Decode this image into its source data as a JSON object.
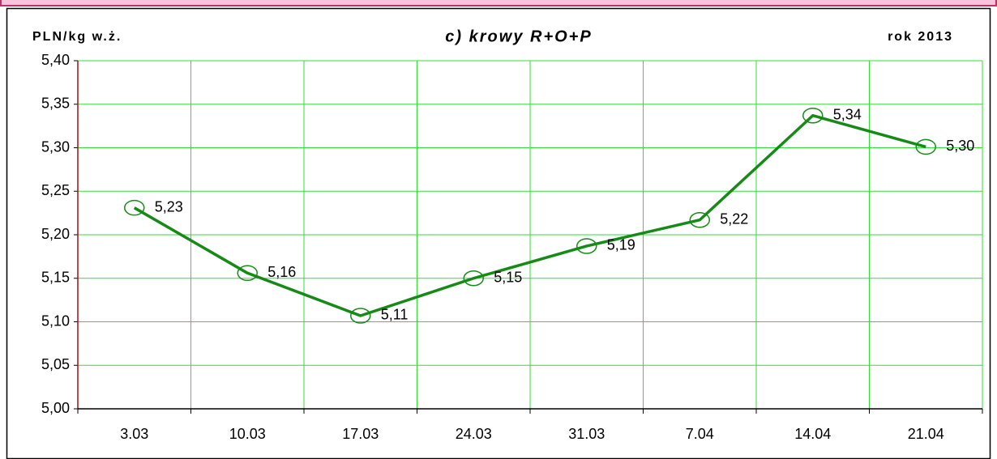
{
  "chart_data": {
    "type": "line",
    "title": "c) krowy R+O+P",
    "y_label": "PLN/kg w.ż.",
    "annotation": "rok 2013",
    "categories": [
      "3.03",
      "10.03",
      "17.03",
      "24.03",
      "31.03",
      "7.04",
      "14.04",
      "21.04"
    ],
    "series": [
      {
        "name": "krowy R+O+P",
        "color": "#168a16",
        "values": [
          5.231,
          5.156,
          5.107,
          5.15,
          5.187,
          5.217,
          5.337,
          5.301
        ],
        "value_labels": [
          "5,23",
          "5,16",
          "5,11",
          "5,15",
          "5,19",
          "5,22",
          "5,34",
          "5,30"
        ]
      }
    ],
    "ylim": [
      5.0,
      5.4
    ],
    "yticks": [
      {
        "value": 5.0,
        "label": "5,00"
      },
      {
        "value": 5.05,
        "label": "5,05"
      },
      {
        "value": 5.1,
        "label": "5,10"
      },
      {
        "value": 5.15,
        "label": "5,15"
      },
      {
        "value": 5.2,
        "label": "5,20"
      },
      {
        "value": 5.25,
        "label": "5,25"
      },
      {
        "value": 5.3,
        "label": "5,30"
      },
      {
        "value": 5.35,
        "label": "5,35"
      },
      {
        "value": 5.4,
        "label": "5,40"
      }
    ],
    "grid": true,
    "grid_color": "#33dd33"
  }
}
